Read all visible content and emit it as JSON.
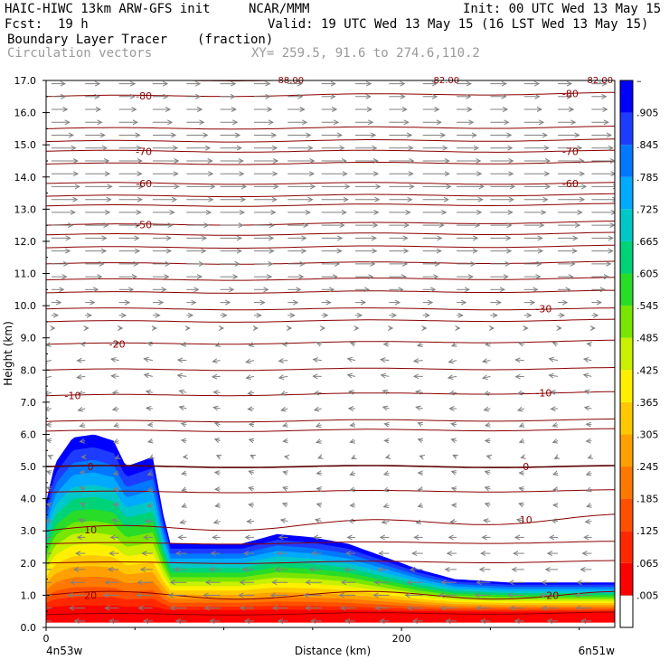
{
  "header": {
    "line1_left": "HAIC-HIWC 13km ARW-GFS init",
    "line1_mid": "NCAR/MMM",
    "line1_right": "Init: 00 UTC Wed 13 May 15",
    "fcst_label": "Fcst:",
    "fcst_value": "19 h",
    "valid": "Valid: 19 UTC Wed 13 May 15 (16 LST Wed 13 May 15)",
    "field_name": "Boundary Layer Tracer",
    "field_units": "(fraction)",
    "vector_name": "Circulation vectors",
    "xy_range": "XY= 259.5, 91.6 to 274.6,110.2"
  },
  "chart_data": {
    "type": "heatmap",
    "title": "Boundary Layer Tracer",
    "ylabel": "Height (km)",
    "xlabel": "Distance (km)",
    "ylim": [
      0,
      17
    ],
    "xlim": [
      0,
      320
    ],
    "yticks": [
      "0.0",
      "1.0",
      "2.0",
      "3.0",
      "4.0",
      "5.0",
      "6.0",
      "7.0",
      "8.0",
      "9.0",
      "10.0",
      "11.0",
      "12.0",
      "13.0",
      "14.0",
      "15.0",
      "16.0",
      "17.0"
    ],
    "xticks": [
      {
        "value": 0,
        "label": "0"
      },
      {
        "value": 200,
        "label": "200"
      }
    ],
    "x_endpoints": {
      "left": "4n53w",
      "right": "6n51w"
    },
    "colorbar_labels": [
      ".005",
      ".065",
      ".125",
      ".185",
      ".245",
      ".305",
      ".365",
      ".425",
      ".485",
      ".545",
      ".605",
      ".665",
      ".725",
      ".785",
      ".845",
      ".905",
      "–"
    ],
    "colorbar_colors": [
      "#ff0000",
      "#ff2800",
      "#ff5000",
      "#ff7800",
      "#ffa000",
      "#ffc800",
      "#fff000",
      "#c8f000",
      "#78e600",
      "#28dc28",
      "#00d278",
      "#00c8c8",
      "#00aaff",
      "#0078ff",
      "#1e3cff",
      "#0000ff"
    ],
    "surface_tracer_profile": [
      {
        "x": 0,
        "top": 3.9
      },
      {
        "x": 5,
        "top": 5.1
      },
      {
        "x": 15,
        "top": 5.9
      },
      {
        "x": 27,
        "top": 6.0
      },
      {
        "x": 38,
        "top": 5.8
      },
      {
        "x": 45,
        "top": 5.0
      },
      {
        "x": 60,
        "top": 5.3
      },
      {
        "x": 62,
        "top": 4.7
      },
      {
        "x": 66,
        "top": 3.5
      },
      {
        "x": 70,
        "top": 2.6
      },
      {
        "x": 85,
        "top": 2.6
      },
      {
        "x": 110,
        "top": 2.6
      },
      {
        "x": 130,
        "top": 2.9
      },
      {
        "x": 150,
        "top": 2.8
      },
      {
        "x": 170,
        "top": 2.6
      },
      {
        "x": 190,
        "top": 2.2
      },
      {
        "x": 210,
        "top": 1.8
      },
      {
        "x": 230,
        "top": 1.5
      },
      {
        "x": 260,
        "top": 1.4
      },
      {
        "x": 290,
        "top": 1.4
      },
      {
        "x": 320,
        "top": 1.4
      }
    ],
    "temperature_contours": [
      {
        "label": "-80",
        "y_left": 16.5,
        "y_right": 16.6,
        "label_x": [
          55,
          295
        ]
      },
      {
        "label": "-70",
        "y_left": 14.8,
        "y_right": 14.8,
        "label_x": [
          55,
          295
        ]
      },
      {
        "label": "-60",
        "y_left": 13.8,
        "y_right": 13.8,
        "label_x": [
          55,
          295
        ]
      },
      {
        "label": "-50",
        "y_left": 12.5,
        "y_right": 12.6,
        "label_x": [
          55
        ]
      },
      {
        "label": "-30",
        "y_left": 9.9,
        "y_right": 9.9,
        "label_x": [
          280
        ]
      },
      {
        "label": "-20",
        "y_left": 8.8,
        "y_right": 8.9,
        "label_x": [
          40
        ]
      },
      {
        "label": "-10",
        "y_left": 7.2,
        "y_right": 7.3,
        "label_x": [
          15,
          280
        ]
      },
      {
        "label": "0",
        "y_left": 5.0,
        "y_right": 5.0,
        "label_x": [
          25,
          270
        ]
      },
      {
        "label": "10",
        "y_left": 3.0,
        "y_right": 3.4,
        "label_x": [
          25,
          270
        ]
      },
      {
        "label": "20",
        "y_left": 1.0,
        "y_right": 1.0,
        "label_x": [
          25,
          285
        ]
      }
    ],
    "unlabeled_contour_levels_km": [
      17.0,
      15.5,
      15.1,
      14.4,
      13.4,
      13.1,
      12.2,
      11.8,
      11.3,
      10.8,
      10.4,
      9.5,
      8.0,
      6.4,
      6.1,
      4.2,
      2.6,
      2.0,
      0.4
    ],
    "wind_layers": [
      {
        "z": 16.9,
        "u": 0.9
      },
      {
        "z": 16.5,
        "u": 0.9
      },
      {
        "z": 16.1,
        "u": 1.0
      },
      {
        "z": 15.7,
        "u": 1.1
      },
      {
        "z": 15.3,
        "u": 1.3
      },
      {
        "z": 14.9,
        "u": 1.4
      },
      {
        "z": 14.5,
        "u": 1.5
      },
      {
        "z": 14.1,
        "u": 1.5
      },
      {
        "z": 13.7,
        "u": 1.6
      },
      {
        "z": 13.3,
        "u": 1.5
      },
      {
        "z": 12.9,
        "u": 1.4
      },
      {
        "z": 12.5,
        "u": 1.3
      },
      {
        "z": 12.1,
        "u": 1.2
      },
      {
        "z": 11.7,
        "u": 1.2
      },
      {
        "z": 11.3,
        "u": 1.1
      },
      {
        "z": 10.9,
        "u": 1.0
      },
      {
        "z": 10.5,
        "u": 0.8
      },
      {
        "z": 10.1,
        "u": 0.6
      },
      {
        "z": 9.7,
        "u": 0.4
      },
      {
        "z": 9.3,
        "u": 0.2
      },
      {
        "z": 8.8,
        "u": -0.3
      },
      {
        "z": 8.3,
        "u": -0.5
      },
      {
        "z": 7.8,
        "u": -0.5
      },
      {
        "z": 7.3,
        "u": -0.4
      },
      {
        "z": 6.8,
        "u": -0.4
      },
      {
        "z": 6.3,
        "u": -0.3
      },
      {
        "z": 5.8,
        "u": -0.3
      },
      {
        "z": 5.3,
        "u": -0.2
      },
      {
        "z": 4.8,
        "u": -0.3
      },
      {
        "z": 4.3,
        "u": -0.3
      },
      {
        "z": 3.8,
        "u": -0.3
      },
      {
        "z": 3.3,
        "u": -0.4
      },
      {
        "z": 2.8,
        "u": -0.5
      },
      {
        "z": 2.3,
        "u": -0.6
      },
      {
        "z": 1.8,
        "u": -0.7
      },
      {
        "z": 1.4,
        "u": -0.9
      },
      {
        "z": 1.0,
        "u": -1.0
      },
      {
        "z": 0.6,
        "u": -0.9
      },
      {
        "z": 0.2,
        "u": -0.6
      }
    ],
    "top_partial_labels": [
      "-88.00",
      "-82.00",
      "-82.00"
    ]
  }
}
